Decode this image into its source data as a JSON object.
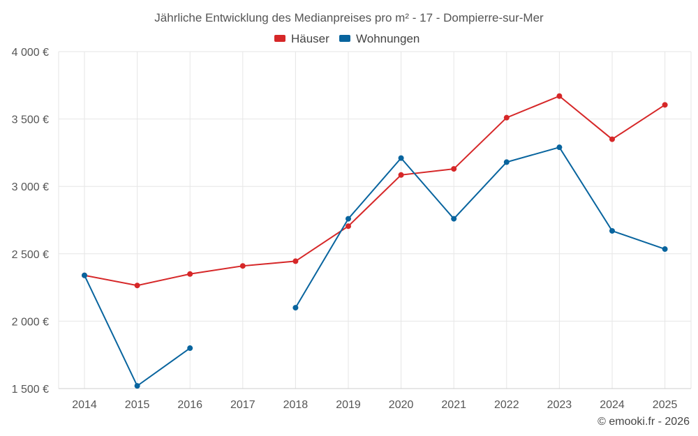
{
  "chart_data": {
    "type": "line",
    "title": "Jährliche Entwicklung des Medianpreises pro m² - 17 - Dompierre-sur-Mer",
    "categories": [
      "2014",
      "2015",
      "2016",
      "2017",
      "2018",
      "2019",
      "2020",
      "2021",
      "2022",
      "2023",
      "2024",
      "2025"
    ],
    "ylim": [
      1500,
      4000
    ],
    "yticks": [
      1500,
      2000,
      2500,
      3000,
      3500,
      4000
    ],
    "ytick_labels": [
      "1 500 €",
      "2 000 €",
      "2 500 €",
      "3 000 €",
      "3 500 €",
      "4 000 €"
    ],
    "legend_position": "top-center",
    "grid": true,
    "series": [
      {
        "name": "Häuser",
        "color": "#d62728",
        "values": [
          2340,
          2265,
          2350,
          2410,
          2445,
          2705,
          3085,
          3130,
          3510,
          3670,
          3350,
          3605
        ]
      },
      {
        "name": "Wohnungen",
        "color": "#08649e",
        "values": [
          2340,
          1520,
          1800,
          null,
          2100,
          2760,
          3210,
          2760,
          3180,
          3290,
          2670,
          2535
        ]
      }
    ]
  },
  "credit": "© emooki.fr - 2026"
}
